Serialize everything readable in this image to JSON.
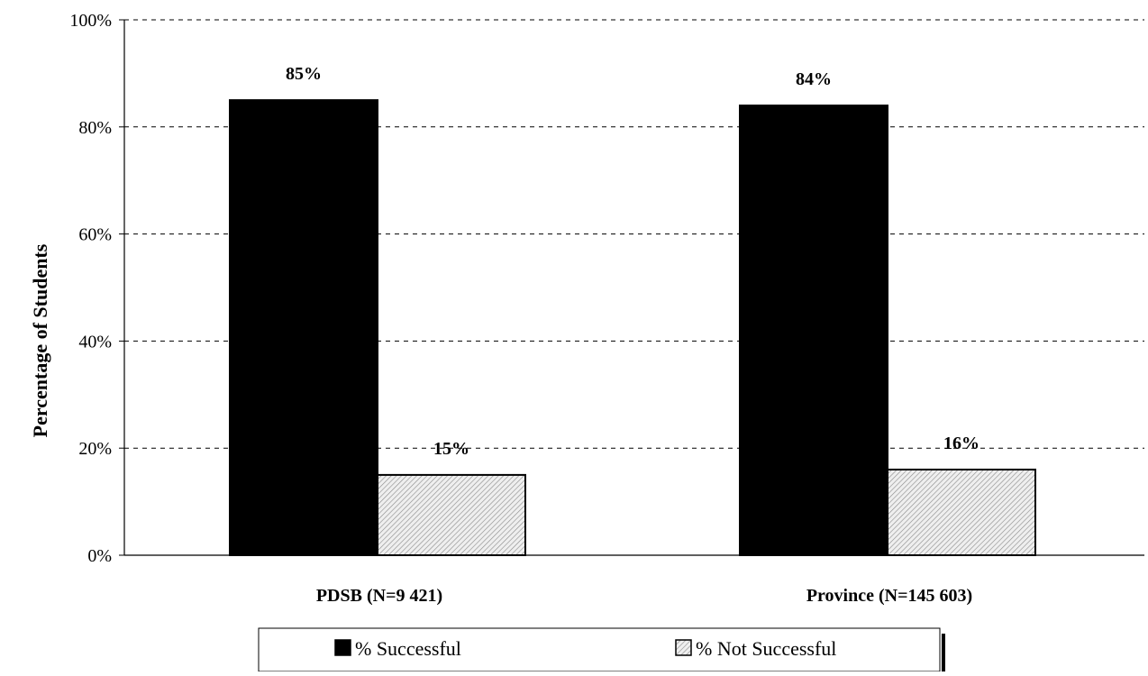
{
  "chart_data": {
    "type": "bar",
    "title": "",
    "xlabel": "",
    "ylabel": "Percentage of Students",
    "categories": [
      "PDSB (N=9 421)",
      "Province (N=145 603)"
    ],
    "series": [
      {
        "name": "% Successful",
        "values": [
          85,
          84
        ],
        "labels": [
          "85%",
          "84%"
        ],
        "color": "#000000",
        "pattern": "solid"
      },
      {
        "name": "% Not Successful",
        "values": [
          15,
          16
        ],
        "labels": [
          "15%",
          "16%"
        ],
        "color": "#d9d9d9",
        "pattern": "diagonal-hatch"
      }
    ],
    "ylim": [
      0,
      100
    ],
    "yticks": [
      "0%",
      "20%",
      "40%",
      "60%",
      "80%",
      "100%"
    ],
    "ytick_values": [
      0,
      20,
      40,
      60,
      80,
      100
    ],
    "grid": true,
    "legend_position": "bottom"
  }
}
